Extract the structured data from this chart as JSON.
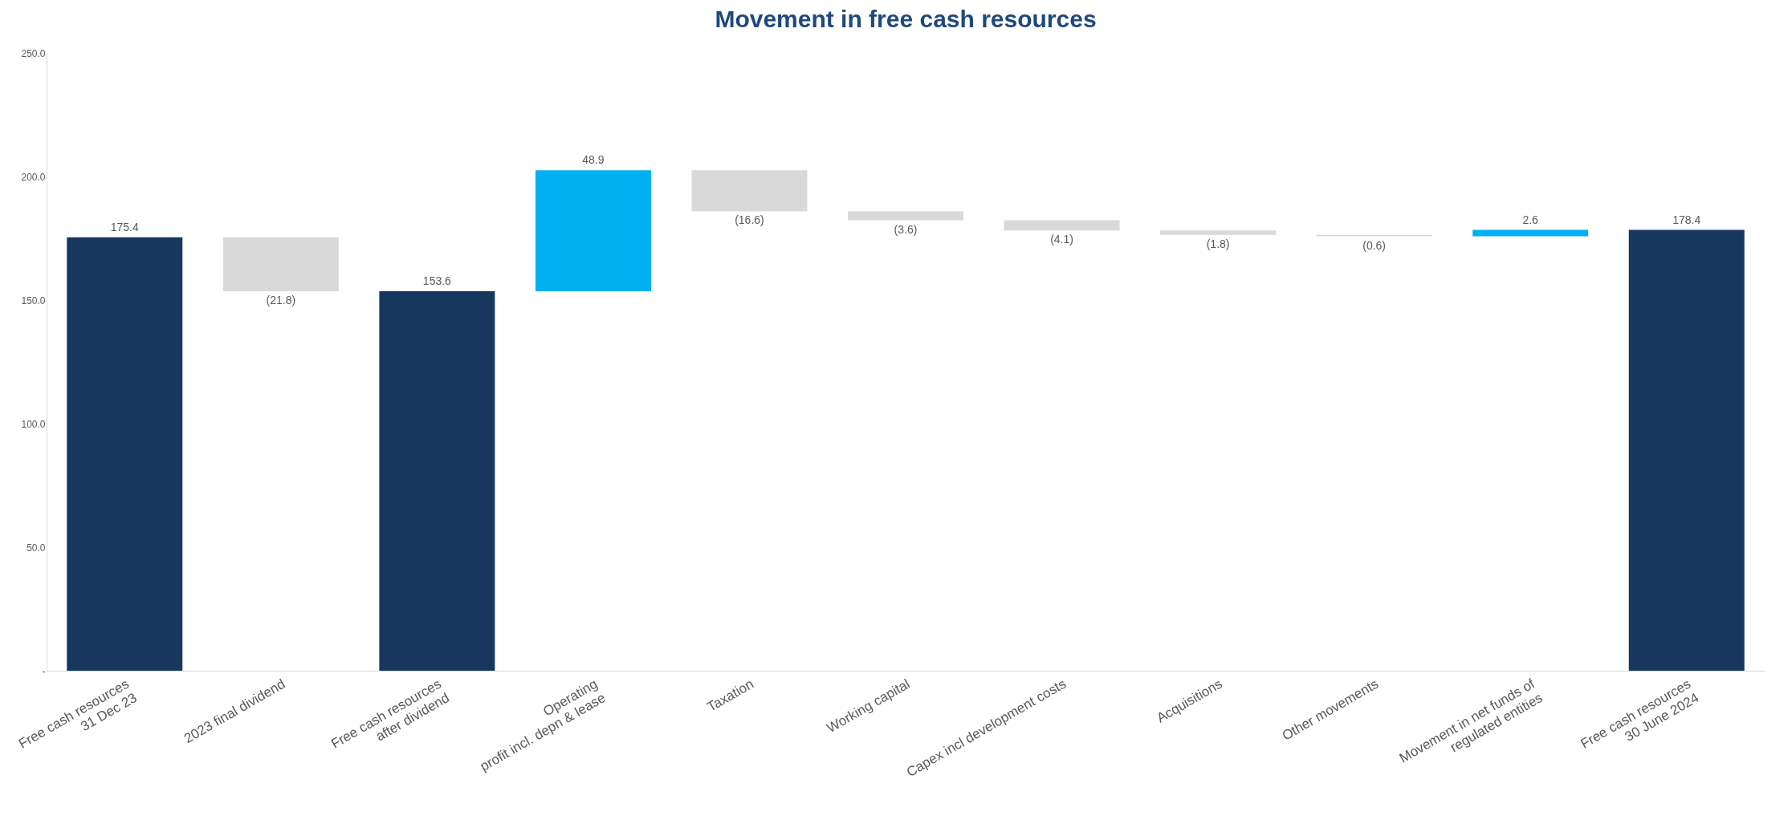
{
  "chart_data": {
    "type": "bar",
    "title": "Movement in free cash resources",
    "categories": [
      "Free cash resources\n31 Dec 23",
      "2023 final dividend",
      "Free cash resources\nafter dividend",
      "Operating\nprofit incl. depn & lease",
      "Taxation",
      "Working capital",
      "Capex incl development costs",
      "Acquisitions",
      "Other movements",
      "Movement in net funds of\nregulated entities",
      "Free cash resources\n30 June 2024"
    ],
    "values": [
      175.4,
      -21.8,
      153.6,
      48.9,
      -16.6,
      -3.6,
      -4.1,
      -1.8,
      -0.6,
      2.6,
      178.4
    ],
    "base": [
      0,
      175.4,
      0,
      153.6,
      202.5,
      185.9,
      182.3,
      178.2,
      176.4,
      175.8,
      0
    ],
    "colors": [
      "#17375e",
      "#d9d9d9",
      "#17375e",
      "#00b0f0",
      "#d9d9d9",
      "#d9d9d9",
      "#d9d9d9",
      "#d9d9d9",
      "#d9d9d9",
      "#00b0f0",
      "#17375e"
    ],
    "value_labels": [
      "175.4",
      "(21.8)",
      "153.6",
      "48.9",
      "(16.6)",
      "(3.6)",
      "(4.1)",
      "(1.8)",
      "(0.6)",
      "2.6",
      "178.4"
    ],
    "ylim": [
      0,
      250
    ],
    "yticks": [
      {
        "value": 0,
        "label": "-"
      },
      {
        "value": 50,
        "label": "50.0"
      },
      {
        "value": 100,
        "label": "100.0"
      },
      {
        "value": 150,
        "label": "150.0"
      },
      {
        "value": 200,
        "label": "200.0"
      },
      {
        "value": 250,
        "label": "250.0"
      }
    ],
    "grid": false
  }
}
